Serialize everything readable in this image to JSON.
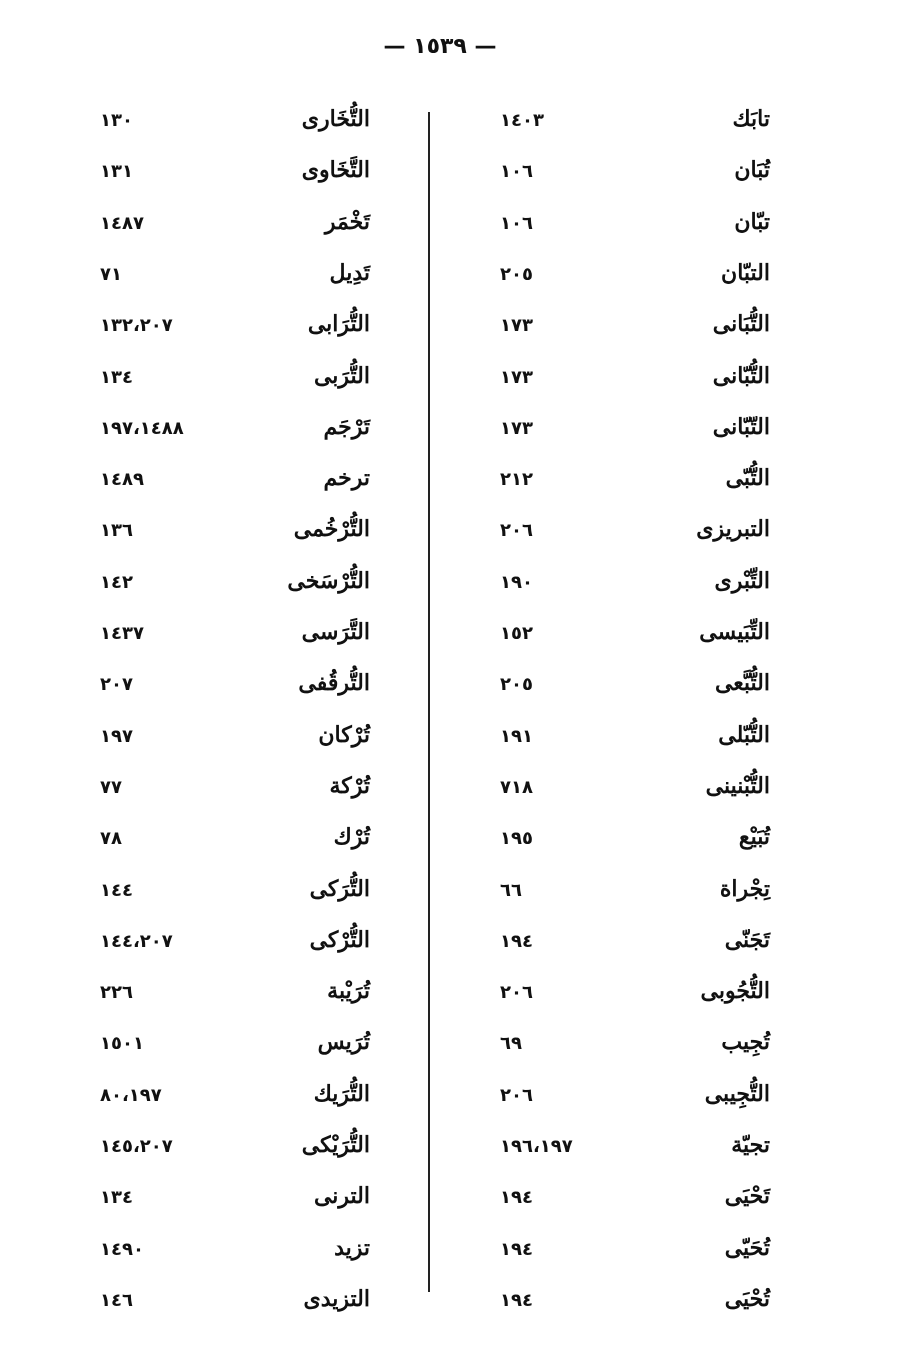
{
  "header": {
    "page_number": "— ١٥٣٩ —"
  },
  "right_column": [
    {
      "name": "تابَك",
      "pages": "١٤٠٣"
    },
    {
      "name": "تُبَان",
      "pages": "١٠٦"
    },
    {
      "name": "تبّان",
      "pages": "١٠٦"
    },
    {
      "name": "التبّان",
      "pages": "٢٠٥"
    },
    {
      "name": "التُّبَانى",
      "pages": "١٧٣"
    },
    {
      "name": "التُّبّانى",
      "pages": "١٧٣"
    },
    {
      "name": "التّبّانى",
      "pages": "١٧٣"
    },
    {
      "name": "التُّبّى",
      "pages": "٢١٢"
    },
    {
      "name": "التبريزى",
      "pages": "٢٠٦"
    },
    {
      "name": "التِّبْرى",
      "pages": "١٩٠"
    },
    {
      "name": "التِّبَيسى",
      "pages": "١٥٢"
    },
    {
      "name": "التُّبَّعى",
      "pages": "٢٠٥"
    },
    {
      "name": "التُّبّلى",
      "pages": "١٩١"
    },
    {
      "name": "التُّبْنينى",
      "pages": "٧١٨"
    },
    {
      "name": "تُبَيْع",
      "pages": "١٩٥"
    },
    {
      "name": "تِجْراة",
      "pages": "٦٦"
    },
    {
      "name": "تَجَنّى",
      "pages": "١٩٤"
    },
    {
      "name": "التُّجُوبى",
      "pages": "٢٠٦"
    },
    {
      "name": "تُجِيب",
      "pages": "٦٩"
    },
    {
      "name": "التُّجِيبى",
      "pages": "٢٠٦"
    },
    {
      "name": "تجيّة",
      "pages": "١٩٦،١٩٧"
    },
    {
      "name": "تَحْيَى",
      "pages": "١٩٤"
    },
    {
      "name": "تُحَيّى",
      "pages": "١٩٤"
    },
    {
      "name": "تُحْيَى",
      "pages": "١٩٤"
    }
  ],
  "left_column": [
    {
      "name": "التُّخَارى",
      "pages": "١٣٠"
    },
    {
      "name": "التَّخَاوى",
      "pages": "١٣١"
    },
    {
      "name": "تَخْمَر",
      "pages": "١٤٨٧"
    },
    {
      "name": "تَدِيل",
      "pages": "٧١"
    },
    {
      "name": "التُّرَابى",
      "pages": "١٣٢،٢٠٧"
    },
    {
      "name": "التُّرَبى",
      "pages": "١٣٤"
    },
    {
      "name": "تَرْجَم",
      "pages": "١٩٧،١٤٨٨"
    },
    {
      "name": "ترخم",
      "pages": "١٤٨٩"
    },
    {
      "name": "التُّرْخُمى",
      "pages": "١٣٦"
    },
    {
      "name": "التُّرْسَخى",
      "pages": "١٤٢"
    },
    {
      "name": "التَّرَسى",
      "pages": "١٤٣٧"
    },
    {
      "name": "التُّرقُفى",
      "pages": "٢٠٧"
    },
    {
      "name": "تُرْكان",
      "pages": "١٩٧"
    },
    {
      "name": "تُرْكة",
      "pages": "٧٧"
    },
    {
      "name": "تُرْك",
      "pages": "٧٨"
    },
    {
      "name": "التُّرَكى",
      "pages": "١٤٤"
    },
    {
      "name": "التُّرْكى",
      "pages": "١٤٤،٢٠٧"
    },
    {
      "name": "تُرَيْبة",
      "pages": "٢٢٦"
    },
    {
      "name": "تُرَيس",
      "pages": "١٥٠١"
    },
    {
      "name": "التُّرَيك",
      "pages": "٨٠،١٩٧"
    },
    {
      "name": "التُّرَيْكى",
      "pages": "١٤٥،٢٠٧"
    },
    {
      "name": "الترنى",
      "pages": "١٣٤"
    },
    {
      "name": "تزيد",
      "pages": "١٤٩٠"
    },
    {
      "name": "التزيدى",
      "pages": "١٤٦"
    }
  ]
}
